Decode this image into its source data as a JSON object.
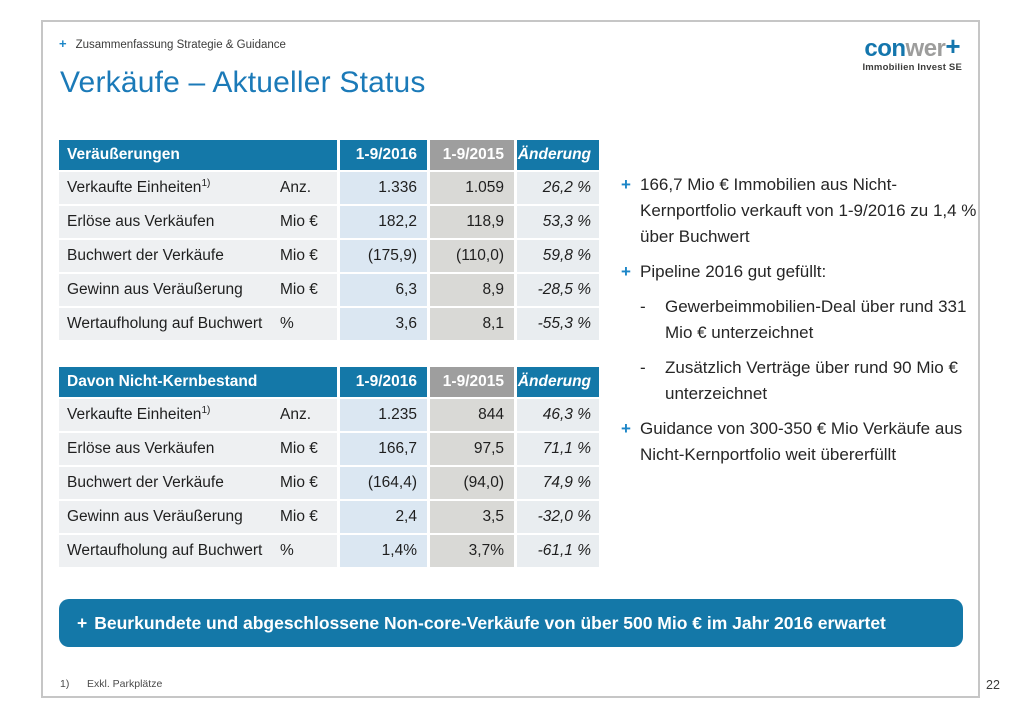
{
  "page": {
    "number": "22"
  },
  "slide": {
    "eyebrow": {
      "marker": "+",
      "text": "Zusammenfassung Strategie & Guidance"
    },
    "title": "Verkäufe – Aktueller Status",
    "logo": {
      "part1": "con",
      "part2": "wer",
      "plus": "+",
      "subtitle": "Immobilien Invest SE"
    },
    "footnote": {
      "ref": "1)",
      "text": "Exkl. Parkplätze"
    }
  },
  "colors": {
    "accent_blue": "#1478a8",
    "title_blue": "#1b7ab8",
    "logo_blue": "#1476ad",
    "logo_gray": "#9d9d9c",
    "header_gray": "#9e9e9e",
    "cell_blue": "#dbe7f2",
    "cell_gray": "#d9d9d6",
    "cell_light": "#eef0f2",
    "plus_marker": "#1c86c7"
  },
  "tables": [
    {
      "title": "Veräußerungen",
      "columns": {
        "c2016": "1-9/2016",
        "c2015": "1-9/2015",
        "change": "Änderung"
      },
      "rows": [
        {
          "label": "Verkaufte Einheiten",
          "sup": "1)",
          "unit": "Anz.",
          "v2016": "1.336",
          "v2015": "1.059",
          "change": "26,2 %"
        },
        {
          "label": "Erlöse aus Verkäufen",
          "unit": "Mio €",
          "v2016": "182,2",
          "v2015": "118,9",
          "change": "53,3 %"
        },
        {
          "label": "Buchwert der Verkäufe",
          "unit": "Mio €",
          "v2016": "(175,9)",
          "v2015": "(110,0)",
          "change": "59,8 %"
        },
        {
          "label": "Gewinn aus Veräußerung",
          "unit": "Mio €",
          "v2016": "6,3",
          "v2015": "8,9",
          "change": "-28,5 %"
        },
        {
          "label": "Wertaufholung auf Buchwert",
          "unit": "%",
          "v2016": "3,6",
          "v2015": "8,1",
          "change": "-55,3 %"
        }
      ]
    },
    {
      "title": "Davon Nicht-Kernbestand",
      "columns": {
        "c2016": "1-9/2016",
        "c2015": "1-9/2015",
        "change": "Änderung"
      },
      "rows": [
        {
          "label": "Verkaufte Einheiten",
          "sup": "1)",
          "unit": "Anz.",
          "v2016": "1.235",
          "v2015": "844",
          "change": "46,3 %"
        },
        {
          "label": "Erlöse aus Verkäufen",
          "unit": "Mio €",
          "v2016": "166,7",
          "v2015": "97,5",
          "change": "71,1 %"
        },
        {
          "label": "Buchwert der Verkäufe",
          "unit": "Mio €",
          "v2016": "(164,4)",
          "v2015": "(94,0)",
          "change": "74,9 %"
        },
        {
          "label": "Gewinn aus Veräußerung",
          "unit": "Mio €",
          "v2016": "2,4",
          "v2015": "3,5",
          "change": "-32,0 %"
        },
        {
          "label": "Wertaufholung auf Buchwert",
          "unit": "%",
          "v2016": "1,4%",
          "v2015": "3,7%",
          "change": "-61,1 %"
        }
      ]
    }
  ],
  "bullets": [
    {
      "type": "plus",
      "marker": "+",
      "text": "166,7 Mio € Immobilien aus Nicht-Kernportfolio verkauft von 1-9/2016 zu 1,4 % über Buchwert"
    },
    {
      "type": "plus",
      "marker": "+",
      "text": "Pipeline 2016 gut gefüllt:"
    },
    {
      "type": "dash",
      "marker": "-",
      "text": "Gewerbeimmobilien-Deal über rund 331 Mio € unterzeichnet"
    },
    {
      "type": "dash",
      "marker": "-",
      "text": "Zusätzlich Verträge über rund 90 Mio € unterzeichnet"
    },
    {
      "type": "plus",
      "marker": "+",
      "text": "Guidance von 300-350 € Mio Verkäufe aus Nicht-Kernportfolio weit übererfüllt"
    }
  ],
  "banner": {
    "marker": "+",
    "text": "Beurkundete und abgeschlossene Non-core-Verkäufe von über 500 Mio € im Jahr 2016 erwartet"
  }
}
